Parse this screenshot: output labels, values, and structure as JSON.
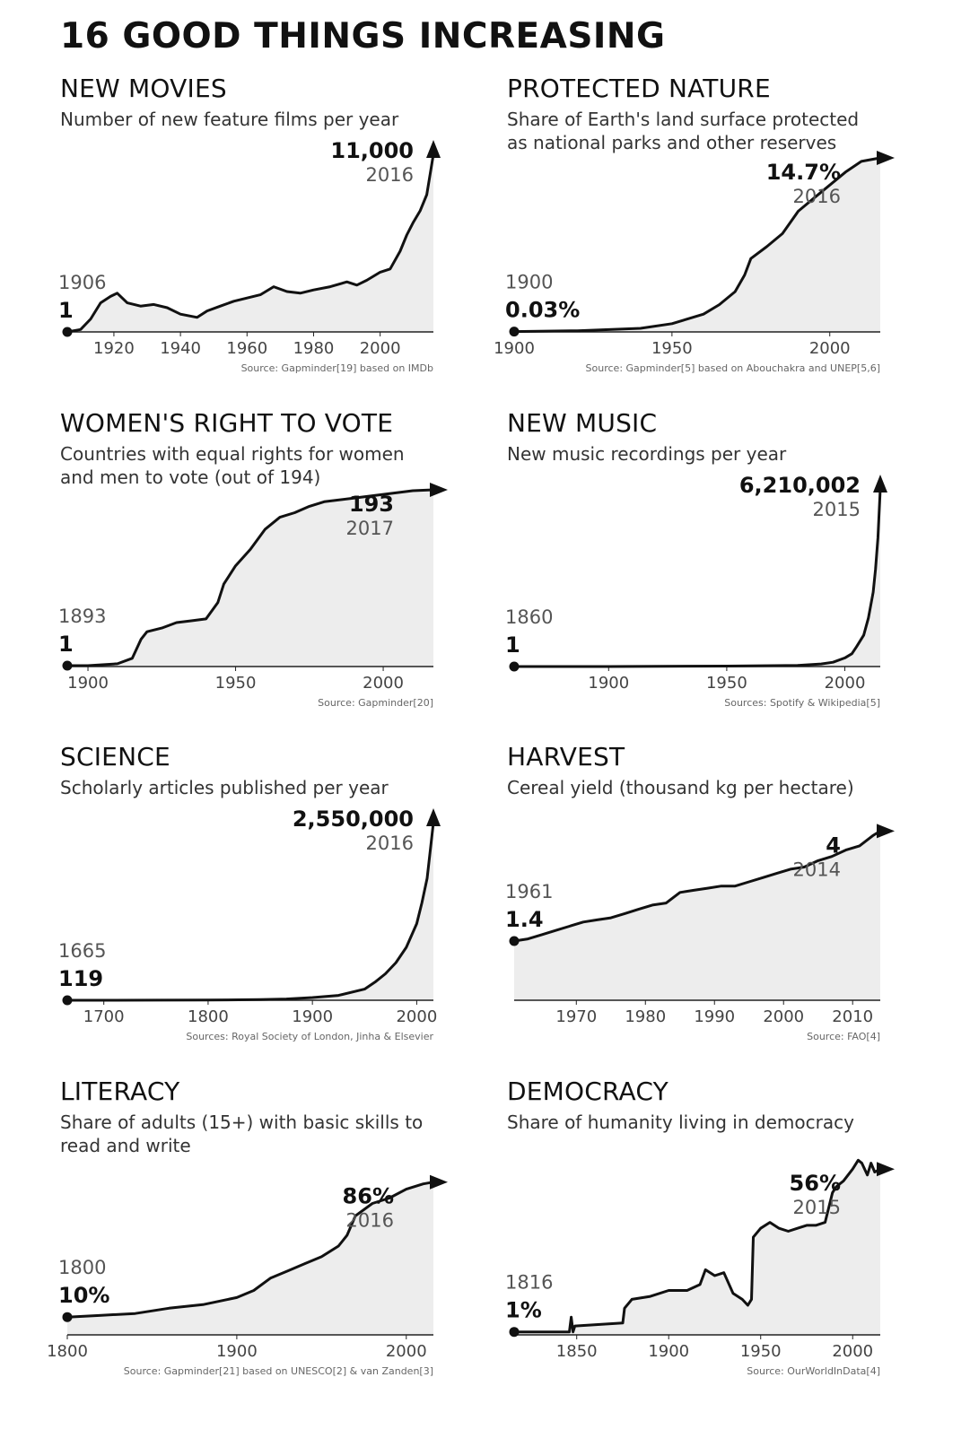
{
  "title": "16 GOOD THINGS INCREASING",
  "chart_data": [
    {
      "type": "area",
      "title": "NEW MOVIES",
      "subtitle": "Number of new feature films per year",
      "xlim": [
        1906,
        2016
      ],
      "ylim": [
        0,
        11000
      ],
      "x": [
        1906,
        1910,
        1913,
        1916,
        1919,
        1921,
        1924,
        1928,
        1932,
        1936,
        1940,
        1945,
        1948,
        1952,
        1956,
        1960,
        1964,
        1968,
        1972,
        1976,
        1980,
        1985,
        1990,
        1993,
        1996,
        2000,
        2003,
        2006,
        2008,
        2010,
        2012,
        2014,
        2016
      ],
      "y": [
        1,
        150,
        800,
        1800,
        2200,
        2400,
        1800,
        1600,
        1700,
        1500,
        1100,
        900,
        1300,
        1600,
        1900,
        2100,
        2300,
        2800,
        2500,
        2400,
        2600,
        2800,
        3100,
        2900,
        3200,
        3700,
        3900,
        5000,
        6000,
        6800,
        7500,
        8500,
        11000
      ],
      "start_year": "1906",
      "start_value": "1",
      "end_value": "11,000",
      "end_year": "2016",
      "xticks": [
        1920,
        1940,
        1960,
        1980,
        2000
      ],
      "source": "Source: Gapminder[19] based on IMDb",
      "arrow": "up"
    },
    {
      "type": "area",
      "title": "PROTECTED NATURE",
      "subtitle": "Share of Earth's land surface protected as national parks and other reserves",
      "xlim": [
        1900,
        2016
      ],
      "ylim": [
        0,
        15
      ],
      "x": [
        1900,
        1920,
        1940,
        1950,
        1960,
        1965,
        1970,
        1973,
        1975,
        1980,
        1985,
        1990,
        1995,
        2000,
        2005,
        2010,
        2016
      ],
      "y": [
        0.03,
        0.1,
        0.3,
        0.7,
        1.5,
        2.3,
        3.4,
        4.8,
        6.2,
        7.2,
        8.3,
        10.2,
        11.3,
        12.4,
        13.5,
        14.4,
        14.7
      ],
      "start_year": "1900",
      "start_value": "0.03%",
      "end_value": "14.7%",
      "end_year": "2016",
      "xticks": [
        1900,
        1950,
        2000
      ],
      "source": "Source: Gapminder[5] based on Abouchakra and UNEP[5,6]",
      "arrow": "right"
    },
    {
      "type": "area",
      "title": "WOMEN'S RIGHT TO VOTE",
      "subtitle": "Countries with equal rights for women and men to vote (out of 194)",
      "xlim": [
        1893,
        2017
      ],
      "ylim": [
        0,
        194
      ],
      "x": [
        1893,
        1900,
        1910,
        1915,
        1918,
        1920,
        1925,
        1930,
        1935,
        1940,
        1944,
        1946,
        1950,
        1955,
        1960,
        1965,
        1970,
        1975,
        1980,
        1990,
        2000,
        2010,
        2017
      ],
      "y": [
        1,
        1,
        3,
        9,
        30,
        38,
        42,
        48,
        50,
        52,
        70,
        90,
        110,
        128,
        150,
        163,
        168,
        175,
        180,
        184,
        188,
        192,
        193
      ],
      "start_year": "1893",
      "start_value": "1",
      "end_value": "193",
      "end_year": "2017",
      "xticks": [
        1900,
        1950,
        2000
      ],
      "source": "Source: Gapminder[20]",
      "arrow": "right"
    },
    {
      "type": "area",
      "title": "NEW MUSIC",
      "subtitle": "New music recordings per year",
      "xlim": [
        1860,
        2015
      ],
      "ylim": [
        0,
        6210002
      ],
      "x": [
        1860,
        1900,
        1950,
        1980,
        1990,
        1995,
        2000,
        2003,
        2005,
        2008,
        2010,
        2012,
        2013,
        2014,
        2015
      ],
      "y": [
        1,
        1000,
        15000,
        40000,
        90000,
        150000,
        300000,
        450000,
        700000,
        1100000,
        1700000,
        2600000,
        3400000,
        4500000,
        6210002
      ],
      "start_year": "1860",
      "start_value": "1",
      "end_value": "6,210,002",
      "end_year": "2015",
      "xticks": [
        1900,
        1950,
        2000
      ],
      "source": "Sources: Spotify & Wikipedia[5]",
      "arrow": "up"
    },
    {
      "type": "area",
      "title": "SCIENCE",
      "subtitle": "Scholarly articles published per year",
      "xlim": [
        1665,
        2016
      ],
      "ylim": [
        0,
        2550000
      ],
      "x": [
        1665,
        1750,
        1800,
        1850,
        1875,
        1900,
        1925,
        1950,
        1960,
        1970,
        1980,
        1990,
        2000,
        2005,
        2010,
        2016
      ],
      "y": [
        119,
        1000,
        3000,
        9000,
        18000,
        38000,
        70000,
        160000,
        260000,
        380000,
        540000,
        760000,
        1100000,
        1400000,
        1750000,
        2550000
      ],
      "start_year": "1665",
      "start_value": "119",
      "end_value": "2,550,000",
      "end_year": "2016",
      "xticks": [
        1700,
        1800,
        1900,
        2000
      ],
      "source": "Sources: Royal Society of London, Jinha & Elsevier",
      "arrow": "up"
    },
    {
      "type": "area",
      "title": "HARVEST",
      "subtitle": "Cereal yield (thousand kg per hectare)",
      "xlim": [
        1961,
        2014
      ],
      "ylim": [
        0,
        4.2
      ],
      "x": [
        1961,
        1963,
        1965,
        1967,
        1969,
        1971,
        1973,
        1975,
        1977,
        1979,
        1981,
        1983,
        1985,
        1987,
        1989,
        1991,
        1993,
        1995,
        1997,
        1999,
        2001,
        2003,
        2005,
        2007,
        2009,
        2011,
        2013,
        2014
      ],
      "y": [
        1.4,
        1.45,
        1.55,
        1.65,
        1.75,
        1.85,
        1.9,
        1.95,
        2.05,
        2.15,
        2.25,
        2.3,
        2.55,
        2.6,
        2.65,
        2.7,
        2.7,
        2.8,
        2.9,
        3.0,
        3.1,
        3.15,
        3.3,
        3.4,
        3.55,
        3.65,
        3.9,
        4.0
      ],
      "start_year": "1961",
      "start_value": "1.4",
      "end_value": "4",
      "end_year": "2014",
      "xticks": [
        1970,
        1980,
        1990,
        2000,
        2010
      ],
      "source": "Source: FAO[4]",
      "arrow": "right"
    },
    {
      "type": "area",
      "title": "LITERACY",
      "subtitle": "Share of adults (15+) with basic skills to read and write",
      "xlim": [
        1800,
        2016
      ],
      "ylim": [
        0,
        100
      ],
      "x": [
        1800,
        1820,
        1840,
        1860,
        1880,
        1900,
        1910,
        1920,
        1930,
        1940,
        1950,
        1960,
        1965,
        1970,
        1980,
        1990,
        2000,
        2010,
        2016
      ],
      "y": [
        10,
        11,
        12,
        15,
        17,
        21,
        25,
        32,
        36,
        40,
        44,
        50,
        56,
        67,
        74,
        77,
        82,
        85,
        86
      ],
      "start_year": "1800",
      "start_value": "10%",
      "end_value": "86%",
      "end_year": "2016",
      "xticks": [
        1800,
        1900,
        2000
      ],
      "source": "Source: Gapminder[21] based on UNESCO[2] & van Zanden[3]",
      "arrow": "right"
    },
    {
      "type": "area",
      "title": "DEMOCRACY",
      "subtitle": "Share of humanity living in democracy",
      "xlim": [
        1816,
        2015
      ],
      "ylim": [
        0,
        60
      ],
      "x": [
        1816,
        1846,
        1847,
        1848,
        1849,
        1875,
        1876,
        1880,
        1890,
        1900,
        1910,
        1917,
        1920,
        1925,
        1930,
        1935,
        1940,
        1943,
        1945,
        1946,
        1950,
        1955,
        1960,
        1965,
        1970,
        1975,
        1980,
        1985,
        1989,
        1991,
        1995,
        2000,
        2003,
        2005,
        2008,
        2010,
        2012,
        2015
      ],
      "y": [
        1,
        1,
        6,
        1,
        3,
        4,
        9,
        12,
        13,
        15,
        15,
        17,
        22,
        20,
        21,
        14,
        12,
        10,
        12,
        33,
        36,
        38,
        36,
        35,
        36,
        37,
        37,
        38,
        48,
        50,
        52,
        56,
        59,
        58,
        54,
        58,
        55,
        56
      ],
      "start_year": "1816",
      "start_value": "1%",
      "end_value": "56%",
      "end_year": "2015",
      "xticks": [
        1850,
        1900,
        1950,
        2000
      ],
      "source": "Source: OurWorldInData[4]",
      "arrow": "right"
    }
  ]
}
